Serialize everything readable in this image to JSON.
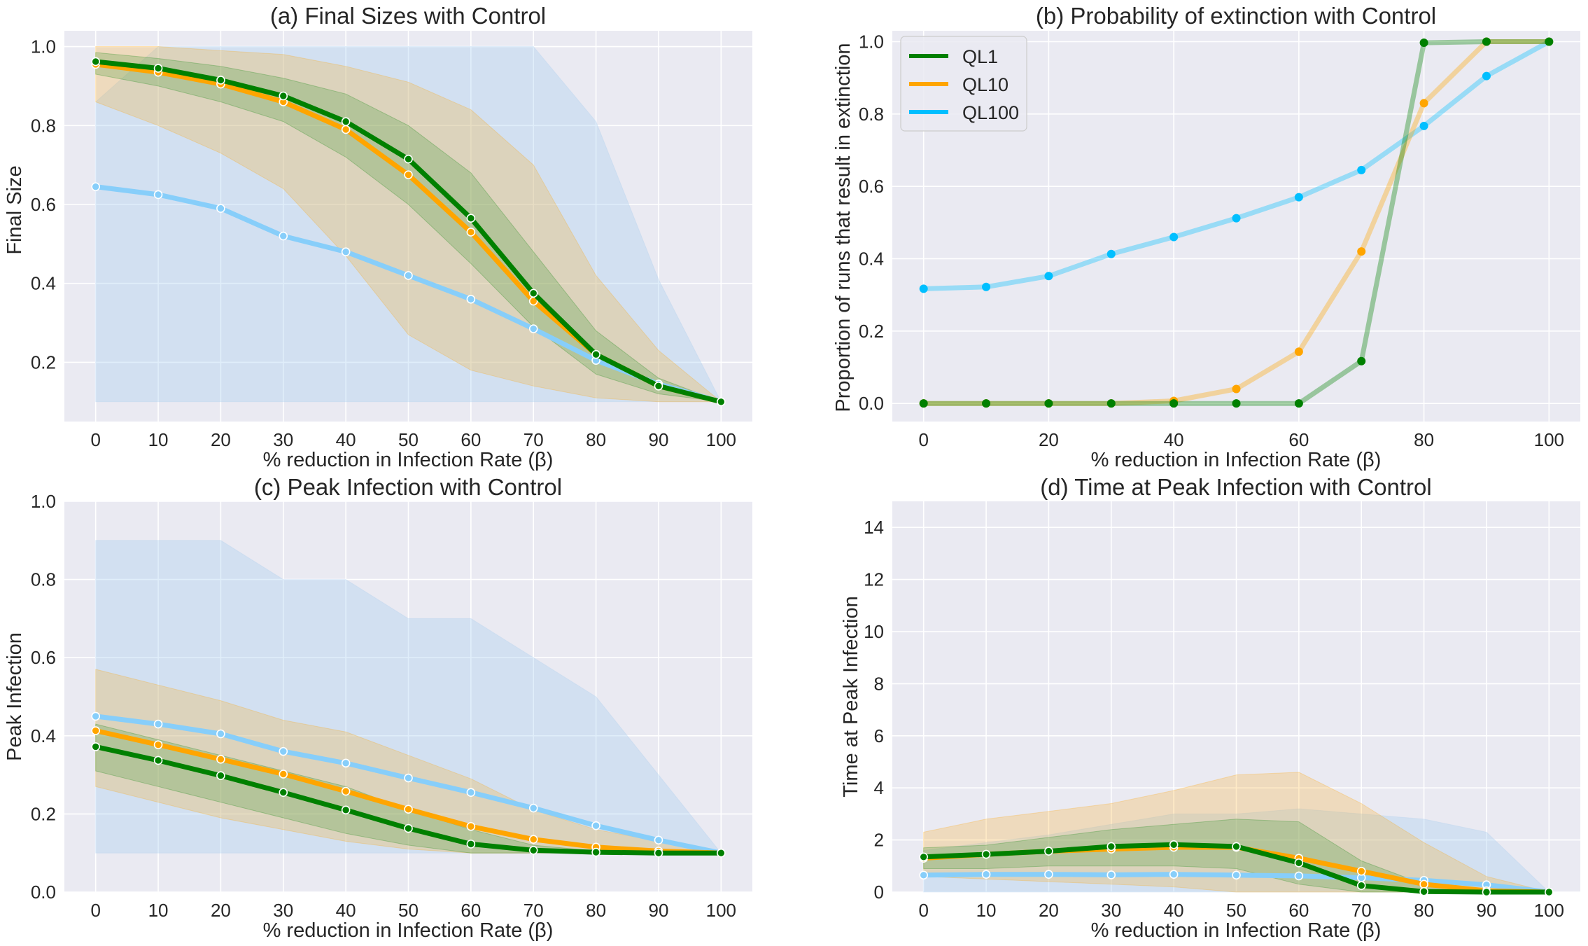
{
  "style": {
    "plot_bg": "#EAEAF2",
    "grid": "#FFFFFF",
    "colors": {
      "QL1": "#008000",
      "QL10": "#FFA500",
      "QL100": "#87CEFA",
      "QL100_b": "#00BFFF"
    }
  },
  "chart_data": [
    {
      "id": "a",
      "type": "line",
      "title": "(a) Final Sizes with Control",
      "xlabel": "% reduction in Infection Rate (β)",
      "ylabel": "Final Size",
      "xlim": [
        -5,
        105
      ],
      "ylim": [
        0.05,
        1.04
      ],
      "xticks": [
        0,
        10,
        20,
        30,
        40,
        50,
        60,
        70,
        80,
        90,
        100
      ],
      "yticks": [
        0.2,
        0.4,
        0.6,
        0.8,
        1.0
      ],
      "ytick_labels": [
        "0.2",
        "0.4",
        "0.6",
        "0.8",
        "1.0"
      ],
      "x": [
        0,
        10,
        20,
        30,
        40,
        50,
        60,
        70,
        80,
        90,
        100
      ],
      "series": [
        {
          "key": "QL100",
          "color": "#87CEFA",
          "marker": "hollow",
          "lower": [
            0.1,
            0.1,
            0.1,
            0.1,
            0.1,
            0.1,
            0.1,
            0.1,
            0.1,
            0.1,
            0.1
          ],
          "upper": [
            0.86,
            1.0,
            1.0,
            1.0,
            1.0,
            1.0,
            1.0,
            1.0,
            0.81,
            0.41,
            0.1
          ],
          "band_color": "#A7CDF0",
          "band_opacity": 0.35,
          "values": [
            0.645,
            0.625,
            0.59,
            0.52,
            0.48,
            0.42,
            0.36,
            0.285,
            0.205,
            0.145,
            0.1
          ]
        },
        {
          "key": "QL10",
          "color": "#FFA500",
          "marker": "hollow",
          "lower": [
            0.86,
            0.8,
            0.73,
            0.64,
            0.47,
            0.27,
            0.18,
            0.14,
            0.11,
            0.1,
            0.1
          ],
          "upper": [
            1.0,
            1.0,
            0.99,
            0.98,
            0.95,
            0.91,
            0.84,
            0.7,
            0.42,
            0.23,
            0.1
          ],
          "band_color": "#FFA500",
          "band_opacity": 0.22,
          "values": [
            0.955,
            0.935,
            0.905,
            0.86,
            0.79,
            0.675,
            0.53,
            0.355,
            0.22,
            0.14,
            0.1
          ]
        },
        {
          "key": "QL1",
          "color": "#008000",
          "marker": "hollow",
          "lower": [
            0.93,
            0.9,
            0.86,
            0.81,
            0.72,
            0.6,
            0.45,
            0.29,
            0.17,
            0.12,
            0.1
          ],
          "upper": [
            0.985,
            0.97,
            0.95,
            0.92,
            0.88,
            0.8,
            0.68,
            0.48,
            0.28,
            0.16,
            0.1
          ],
          "band_color": "#008000",
          "band_opacity": 0.18,
          "values": [
            0.962,
            0.945,
            0.915,
            0.875,
            0.81,
            0.715,
            0.565,
            0.375,
            0.22,
            0.14,
            0.1
          ]
        }
      ]
    },
    {
      "id": "b",
      "type": "line",
      "title": "(b) Probability of extinction with Control",
      "xlabel": "% reduction in Infection Rate (β)",
      "ylabel": "Proportion of runs that result in extinction",
      "xlim": [
        -5,
        105
      ],
      "ylim": [
        -0.05,
        1.03
      ],
      "xticks": [
        0,
        20,
        40,
        60,
        80,
        100
      ],
      "yticks": [
        0.0,
        0.2,
        0.4,
        0.6,
        0.8,
        1.0
      ],
      "ytick_labels": [
        "0.0",
        "0.2",
        "0.4",
        "0.6",
        "0.8",
        "1.0"
      ],
      "x": [
        0,
        10,
        20,
        30,
        40,
        50,
        60,
        70,
        80,
        90,
        100
      ],
      "legend": {
        "position": "top-left",
        "entries": [
          {
            "label": "QL1",
            "color": "#008000"
          },
          {
            "label": "QL10",
            "color": "#FFA500"
          },
          {
            "label": "QL100",
            "color": "#00BFFF"
          }
        ]
      },
      "series": [
        {
          "key": "QL100",
          "color": "#00BFFF",
          "marker": "filled",
          "line_opacity": 0.35,
          "values": [
            0.317,
            0.322,
            0.352,
            0.413,
            0.46,
            0.512,
            0.57,
            0.645,
            0.767,
            0.905,
            1.0
          ]
        },
        {
          "key": "QL10",
          "color": "#FFA500",
          "marker": "filled",
          "line_opacity": 0.35,
          "values": [
            0.0,
            0.0,
            0.0,
            0.0,
            0.007,
            0.04,
            0.143,
            0.42,
            0.83,
            1.0,
            1.0
          ]
        },
        {
          "key": "QL1",
          "color": "#008000",
          "marker": "filled",
          "line_opacity": 0.35,
          "values": [
            0.0,
            0.0,
            0.0,
            0.0,
            0.0,
            0.0,
            0.0,
            0.117,
            0.997,
            1.0,
            1.0
          ]
        }
      ]
    },
    {
      "id": "c",
      "type": "line",
      "title": "(c) Peak Infection with Control",
      "xlabel": "% reduction in Infection Rate (β)",
      "ylabel": "Peak Infection",
      "xlim": [
        -5,
        105
      ],
      "ylim": [
        0.0,
        1.0
      ],
      "xticks": [
        0,
        10,
        20,
        30,
        40,
        50,
        60,
        70,
        80,
        90,
        100
      ],
      "yticks": [
        0.0,
        0.2,
        0.4,
        0.6,
        0.8,
        1.0
      ],
      "ytick_labels": [
        "0.0",
        "0.2",
        "0.4",
        "0.6",
        "0.8",
        "1.0"
      ],
      "x": [
        0,
        10,
        20,
        30,
        40,
        50,
        60,
        70,
        80,
        90,
        100
      ],
      "series": [
        {
          "key": "QL100",
          "color": "#87CEFA",
          "marker": "hollow",
          "lower": [
            0.1,
            0.1,
            0.1,
            0.1,
            0.1,
            0.1,
            0.1,
            0.1,
            0.1,
            0.1,
            0.1
          ],
          "upper": [
            0.9,
            0.9,
            0.9,
            0.8,
            0.8,
            0.7,
            0.7,
            0.6,
            0.5,
            0.3,
            0.1
          ],
          "band_color": "#A7CDF0",
          "band_opacity": 0.35,
          "values": [
            0.45,
            0.43,
            0.405,
            0.36,
            0.33,
            0.292,
            0.255,
            0.215,
            0.17,
            0.133,
            0.1
          ]
        },
        {
          "key": "QL10",
          "color": "#FFA500",
          "marker": "hollow",
          "lower": [
            0.27,
            0.23,
            0.19,
            0.16,
            0.13,
            0.11,
            0.1,
            0.1,
            0.1,
            0.1,
            0.1
          ],
          "upper": [
            0.57,
            0.53,
            0.49,
            0.44,
            0.41,
            0.35,
            0.29,
            0.21,
            0.16,
            0.13,
            0.1
          ],
          "band_color": "#FFA500",
          "band_opacity": 0.22,
          "values": [
            0.413,
            0.377,
            0.34,
            0.302,
            0.258,
            0.212,
            0.168,
            0.135,
            0.115,
            0.105,
            0.1
          ]
        },
        {
          "key": "QL1",
          "color": "#008000",
          "marker": "hollow",
          "lower": [
            0.31,
            0.27,
            0.23,
            0.19,
            0.15,
            0.12,
            0.1,
            0.1,
            0.1,
            0.1,
            0.1
          ],
          "upper": [
            0.43,
            0.39,
            0.35,
            0.31,
            0.27,
            0.21,
            0.16,
            0.12,
            0.105,
            0.1,
            0.1
          ],
          "band_color": "#008000",
          "band_opacity": 0.18,
          "values": [
            0.372,
            0.337,
            0.298,
            0.255,
            0.21,
            0.163,
            0.123,
            0.107,
            0.102,
            0.1,
            0.1
          ]
        }
      ]
    },
    {
      "id": "d",
      "type": "line",
      "title": "(d) Time at Peak Infection with Control",
      "xlabel": "% reduction in Infection Rate (β)",
      "ylabel": "Time at Peak Infection",
      "xlim": [
        -5,
        105
      ],
      "ylim": [
        0,
        15
      ],
      "xticks": [
        0,
        10,
        20,
        30,
        40,
        50,
        60,
        70,
        80,
        90,
        100
      ],
      "yticks": [
        0,
        2,
        4,
        6,
        8,
        10,
        12,
        14
      ],
      "ytick_labels": [
        "0",
        "2",
        "4",
        "6",
        "8",
        "10",
        "12",
        "14"
      ],
      "x": [
        0,
        10,
        20,
        30,
        40,
        50,
        60,
        70,
        80,
        90,
        100
      ],
      "series": [
        {
          "key": "QL100",
          "color": "#87CEFA",
          "marker": "hollow",
          "lower": [
            0,
            0,
            0,
            0,
            0,
            0,
            0,
            0,
            0,
            0,
            0
          ],
          "upper": [
            1.6,
            1.9,
            2.2,
            2.6,
            3.0,
            3.0,
            3.2,
            3.0,
            2.8,
            2.3,
            0
          ],
          "band_color": "#A7CDF0",
          "band_opacity": 0.35,
          "values": [
            0.65,
            0.68,
            0.68,
            0.66,
            0.68,
            0.65,
            0.62,
            0.55,
            0.45,
            0.28,
            0.0
          ]
        },
        {
          "key": "QL10",
          "color": "#FFA500",
          "marker": "hollow",
          "lower": [
            0.6,
            0.5,
            0.4,
            0.3,
            0.2,
            0.0,
            0.0,
            0.0,
            0.0,
            0.0,
            0.0
          ],
          "upper": [
            2.3,
            2.8,
            3.1,
            3.4,
            3.9,
            4.5,
            4.6,
            3.4,
            1.9,
            0.6,
            0
          ],
          "band_color": "#FFA500",
          "band_opacity": 0.22,
          "values": [
            1.3,
            1.45,
            1.57,
            1.65,
            1.72,
            1.72,
            1.3,
            0.8,
            0.3,
            0.05,
            0.0
          ]
        },
        {
          "key": "QL1",
          "color": "#008000",
          "marker": "hollow",
          "lower": [
            0.9,
            0.9,
            1.0,
            1.0,
            1.0,
            0.9,
            0.3,
            0.0,
            0.0,
            0.0,
            0.0
          ],
          "upper": [
            1.7,
            1.8,
            2.1,
            2.4,
            2.6,
            2.8,
            2.7,
            1.2,
            0.3,
            0.0,
            0.0
          ],
          "band_color": "#008000",
          "band_opacity": 0.18,
          "values": [
            1.35,
            1.45,
            1.57,
            1.75,
            1.82,
            1.75,
            1.12,
            0.25,
            0.02,
            0.0,
            0.0
          ]
        }
      ]
    }
  ]
}
